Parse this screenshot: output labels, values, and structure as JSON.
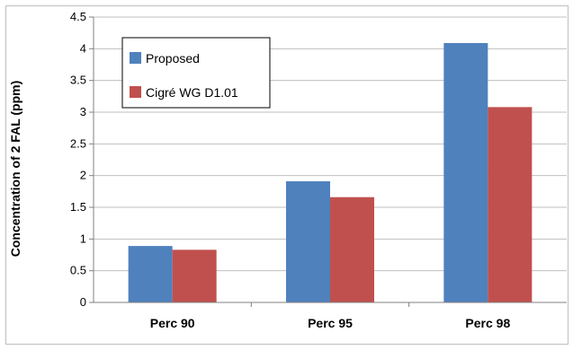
{
  "chart_data": {
    "type": "bar",
    "title": "",
    "xlabel": "",
    "ylabel": "Concentration of 2 FAL (ppm)",
    "categories": [
      "Perc 90",
      "Perc 95",
      "Perc 98"
    ],
    "series": [
      {
        "name": "Proposed",
        "color": "#4f81bd",
        "values": [
          0.89,
          1.91,
          4.09
        ]
      },
      {
        "name": "Cigré WG D1.01",
        "color": "#c0504d",
        "values": [
          0.83,
          1.66,
          3.08
        ]
      }
    ],
    "ylim": [
      0,
      4.5
    ],
    "yticks": [
      "0",
      "0.5",
      "1",
      "1.5",
      "2",
      "2.5",
      "3",
      "3.5",
      "4",
      "4.5"
    ],
    "grid": true,
    "legend_position": "top-left"
  }
}
